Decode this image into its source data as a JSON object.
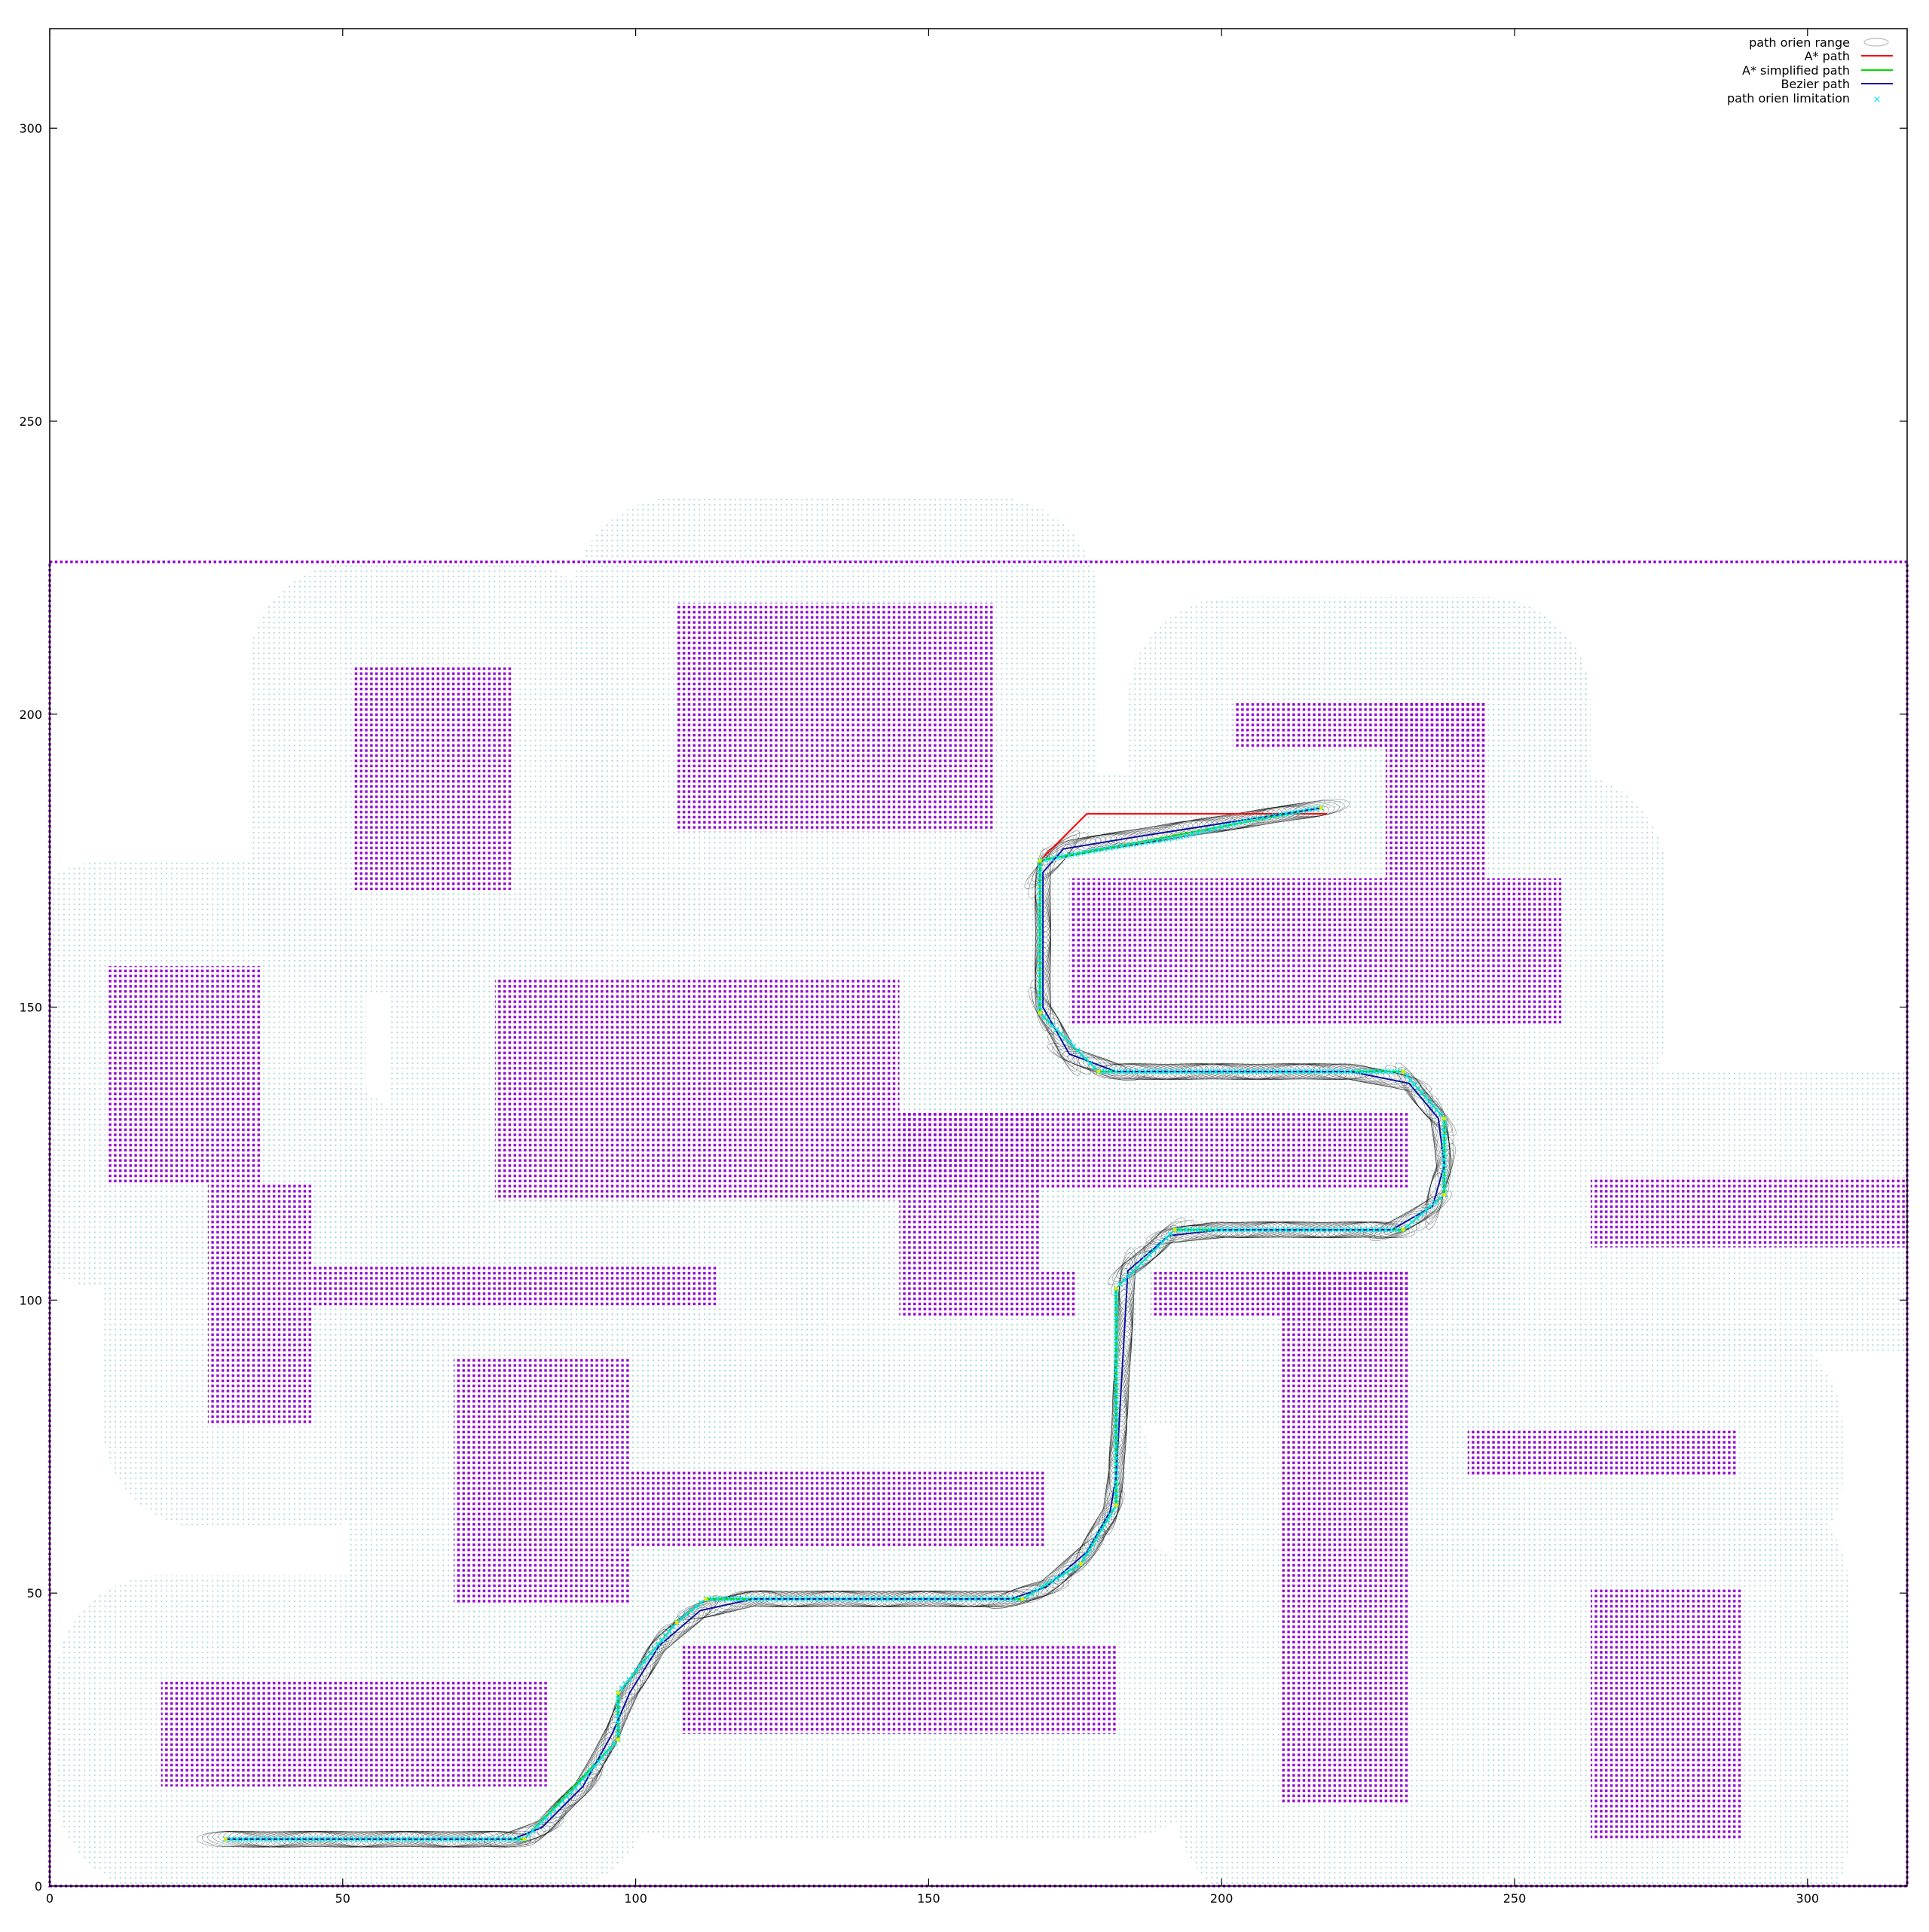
{
  "chart_data": {
    "type": "scatter",
    "title": "",
    "xlabel": "",
    "ylabel": "",
    "xlim": [
      0,
      317
    ],
    "ylim": [
      0,
      317
    ],
    "grid": false,
    "legend_placement": "top-right",
    "x_ticks": [
      0,
      50,
      100,
      150,
      200,
      250,
      300
    ],
    "y_ticks": [
      0,
      50,
      100,
      150,
      200,
      250,
      300
    ],
    "legend": [
      {
        "label": "path orien range",
        "color": "#bbbbbb",
        "style": "ellipse"
      },
      {
        "label": "A* path",
        "color": "#ff0000",
        "style": "line"
      },
      {
        "label": "A* simplified path",
        "color": "#00dd00",
        "style": "line"
      },
      {
        "label": "Bezier path",
        "color": "#1010a0",
        "style": "line"
      },
      {
        "label": "path orien limitation",
        "color": "#00e5ee",
        "style": "point"
      }
    ],
    "obstacle_color": "#9400d3",
    "clearance_color": "#b0d8d8",
    "orien_range_color": "#000000",
    "boundary": {
      "x": [
        0,
        317
      ],
      "y": [
        0,
        226
      ]
    },
    "obstacles": [
      {
        "x": [
          107,
          161
        ],
        "y": [
          180,
          219
        ]
      },
      {
        "x": [
          52,
          79
        ],
        "y": [
          170,
          208
        ]
      },
      {
        "x": [
          202,
          245
        ],
        "y": [
          194,
          202
        ]
      },
      {
        "x": [
          228,
          245
        ],
        "y": [
          172,
          202
        ]
      },
      {
        "x": [
          174,
          258
        ],
        "y": [
          147,
          172
        ]
      },
      {
        "x": [
          10,
          36
        ],
        "y": [
          120,
          157
        ]
      },
      {
        "x": [
          76,
          145
        ],
        "y": [
          117,
          155
        ]
      },
      {
        "x": [
          145,
          232
        ],
        "y": [
          119,
          132
        ]
      },
      {
        "x": [
          145,
          169
        ],
        "y": [
          97,
          132
        ]
      },
      {
        "x": [
          169,
          175
        ],
        "y": [
          97,
          105
        ]
      },
      {
        "x": [
          27,
          45
        ],
        "y": [
          79,
          120
        ]
      },
      {
        "x": [
          45,
          114
        ],
        "y": [
          99,
          106
        ]
      },
      {
        "x": [
          188,
          232
        ],
        "y": [
          97,
          105
        ]
      },
      {
        "x": [
          210,
          232
        ],
        "y": [
          14,
          105
        ]
      },
      {
        "x": [
          263,
          317
        ],
        "y": [
          109,
          121
        ]
      },
      {
        "x": [
          69,
          99
        ],
        "y": [
          48,
          90
        ]
      },
      {
        "x": [
          99,
          170
        ],
        "y": [
          58,
          71
        ]
      },
      {
        "x": [
          242,
          288
        ],
        "y": [
          70,
          78
        ]
      },
      {
        "x": [
          19,
          85
        ],
        "y": [
          17,
          35
        ]
      },
      {
        "x": [
          108,
          182
        ],
        "y": [
          26,
          41
        ]
      },
      {
        "x": [
          263,
          289
        ],
        "y": [
          8,
          51
        ]
      }
    ],
    "series": [
      {
        "name": "A* path",
        "x": [
          30,
          81,
          97,
          97,
          107,
          112,
          166,
          176,
          182,
          182,
          192,
          231,
          238,
          238,
          231,
          179,
          169,
          169,
          177,
          218
        ],
        "y": [
          8,
          8,
          25,
          33,
          45,
          49,
          49,
          55,
          65,
          102,
          112,
          112,
          118,
          131,
          139,
          139,
          149,
          175,
          183,
          183
        ]
      },
      {
        "name": "A* simplified path",
        "x": [
          30,
          81,
          97,
          97,
          107,
          112,
          166,
          176,
          182,
          182,
          192,
          231,
          238,
          238,
          231,
          179,
          169,
          169,
          217
        ],
        "y": [
          8,
          8,
          25,
          33,
          45,
          49,
          49,
          55,
          65,
          102,
          112,
          112,
          118,
          131,
          139,
          139,
          149,
          175,
          184
        ]
      },
      {
        "name": "Bezier path",
        "x": [
          30,
          79,
          84,
          91,
          96,
          99,
          104,
          111,
          120,
          164,
          170,
          177,
          181,
          182,
          184,
          191,
          200,
          229,
          236,
          238,
          237,
          232,
          222,
          182,
          174,
          169.5,
          169.5,
          173,
          185,
          217
        ],
        "y": [
          8,
          8,
          10,
          17,
          26,
          33,
          41,
          47,
          49,
          49,
          51,
          57,
          64,
          70,
          105,
          111,
          112,
          112,
          116,
          123,
          131,
          137,
          139,
          139,
          142,
          150,
          173,
          177,
          179,
          184
        ]
      },
      {
        "name": "path orien limitation",
        "x": [
          30,
          40,
          50,
          60,
          70,
          81,
          89,
          97,
          97,
          102,
          107,
          112,
          125,
          140,
          155,
          166,
          171,
          176,
          182,
          182,
          182,
          182,
          182,
          187,
          192,
          205,
          218,
          231,
          238,
          238,
          231,
          218,
          205,
          192,
          179,
          174,
          169,
          169,
          169,
          180,
          193,
          205,
          217
        ],
        "y": [
          8,
          8,
          8,
          8,
          8,
          8,
          16,
          25,
          33,
          39,
          45,
          49,
          49,
          49,
          49,
          49,
          52,
          55,
          65,
          75,
          85,
          95,
          102,
          107,
          112,
          112,
          112,
          112,
          118,
          131,
          139,
          139,
          139,
          139,
          139,
          144,
          149,
          162,
          175,
          177,
          179,
          182,
          184
        ]
      }
    ]
  }
}
